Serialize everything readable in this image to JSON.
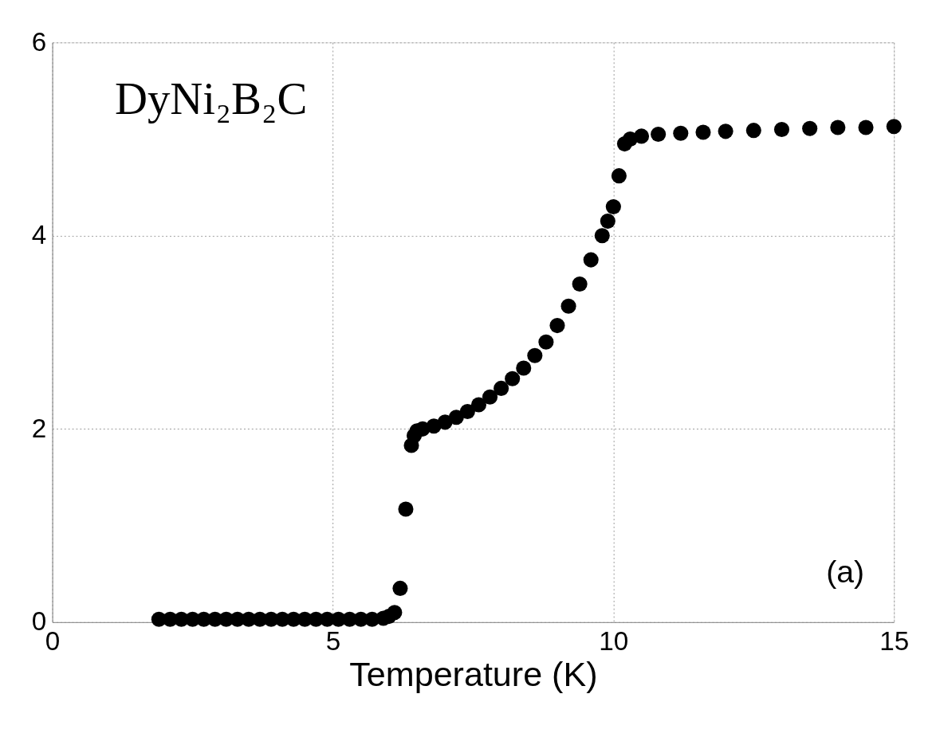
{
  "chart_data": {
    "type": "scatter",
    "xlabel": "Temperature (K)",
    "annotations": [
      "DyNi₂B₂C",
      "(a)"
    ],
    "series": [
      {
        "color": "#000000",
        "x": [
          1.9,
          2.1,
          2.3,
          2.5,
          2.7,
          2.9,
          3.1,
          3.3,
          3.5,
          3.7,
          3.9,
          4.1,
          4.3,
          4.5,
          4.7,
          4.9,
          5.1,
          5.3,
          5.5,
          5.7,
          5.9,
          6.0,
          6.1,
          6.2,
          6.3,
          6.4,
          6.45,
          6.5,
          6.6,
          6.8,
          7.0,
          7.2,
          7.4,
          7.6,
          7.8,
          8.0,
          8.2,
          8.4,
          8.6,
          8.8,
          9.0,
          9.2,
          9.4,
          9.6,
          9.8,
          9.9,
          10.0,
          10.1,
          10.2,
          10.3,
          10.5,
          10.8,
          11.2,
          11.6,
          12.0,
          12.5,
          13.0,
          13.5,
          14.0,
          14.5,
          15.0
        ],
        "values": [
          0.03,
          0.03,
          0.03,
          0.03,
          0.03,
          0.03,
          0.03,
          0.03,
          0.03,
          0.03,
          0.03,
          0.03,
          0.03,
          0.03,
          0.03,
          0.03,
          0.03,
          0.03,
          0.03,
          0.03,
          0.04,
          0.06,
          0.1,
          0.35,
          1.17,
          1.83,
          1.93,
          1.98,
          2.0,
          2.03,
          2.07,
          2.12,
          2.18,
          2.25,
          2.33,
          2.42,
          2.52,
          2.63,
          2.76,
          2.9,
          3.07,
          3.27,
          3.5,
          3.75,
          4.0,
          4.15,
          4.3,
          4.62,
          4.95,
          5.0,
          5.03,
          5.05,
          5.06,
          5.07,
          5.08,
          5.09,
          5.1,
          5.11,
          5.12,
          5.12,
          5.13
        ]
      }
    ],
    "xlim": [
      0,
      15
    ],
    "xticks": [
      0,
      5,
      10,
      15
    ],
    "ylim": [
      0,
      6
    ],
    "yticks": [
      0,
      2,
      4,
      6
    ],
    "grid": true,
    "marker": "circle",
    "legend": false
  }
}
